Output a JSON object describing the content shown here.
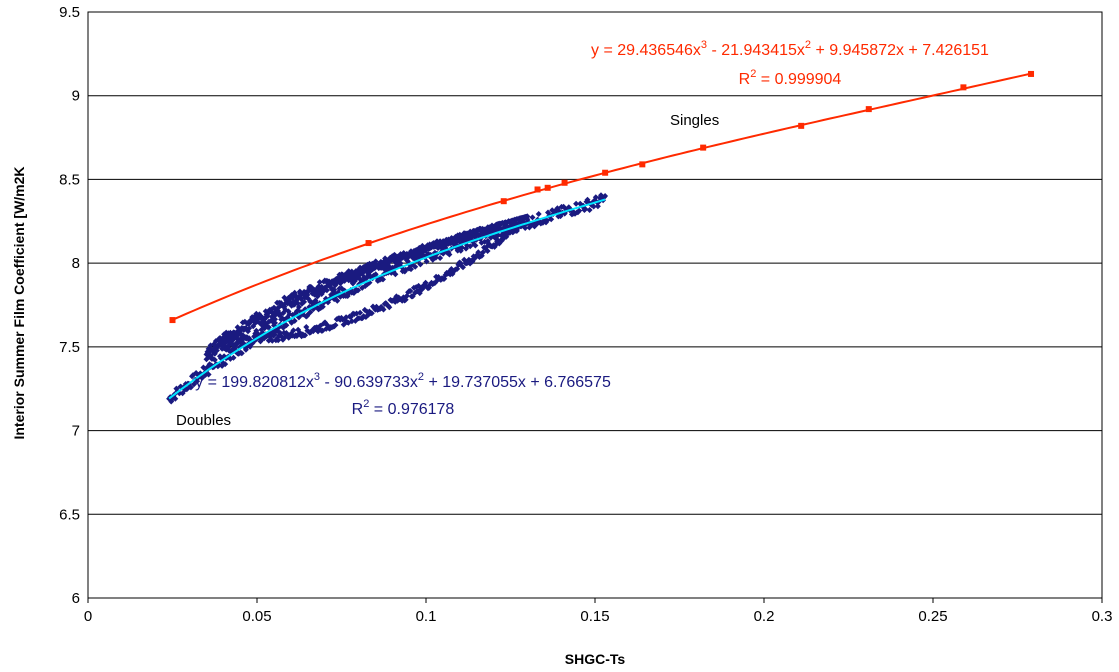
{
  "chart_data": {
    "type": "scatter",
    "title": "",
    "xlabel": "SHGC-Ts",
    "ylabel": "Interior Summer Film Coefficient [W/m2K",
    "xlim": [
      0,
      0.3
    ],
    "ylim": [
      6,
      9.5
    ],
    "x_ticks": [
      "0",
      "0.05",
      "0.1",
      "0.15",
      "0.2",
      "0.25",
      "0.3"
    ],
    "y_ticks": [
      "6",
      "6.5",
      "7",
      "7.5",
      "8",
      "8.5",
      "9",
      "9.5"
    ],
    "grid": "horizontal",
    "series": [
      {
        "name": "Singles",
        "color": "#ff2a00",
        "marker": "square",
        "x": [
          0.025,
          0.083,
          0.123,
          0.133,
          0.136,
          0.141,
          0.153,
          0.164,
          0.182,
          0.211,
          0.231,
          0.259,
          0.279
        ],
        "y": [
          7.66,
          8.12,
          8.37,
          8.44,
          8.45,
          8.48,
          8.54,
          8.59,
          8.69,
          8.82,
          8.92,
          9.05,
          9.13
        ],
        "trendline": {
          "type": "poly3",
          "coefficients": [
            29.436546,
            -21.943415,
            9.945872,
            7.426151
          ],
          "equation": "y = 29.436546x",
          "equation_rest": " - 21.943415x",
          "equation_tail": " + 9.945872x + 7.426151",
          "r2_label": "R",
          "r2_value": " = 0.999904",
          "color": "#ff2a00"
        }
      },
      {
        "name": "Doubles",
        "color": "#1a1a80",
        "marker": "diamond",
        "x_range": [
          0.024,
          0.153
        ],
        "trendline": {
          "type": "poly3",
          "coefficients": [
            199.820812,
            -90.639733,
            19.737055,
            6.766575
          ],
          "equation": "y = 199.820812x",
          "equation_rest": " - 90.639733x",
          "equation_tail": " + 19.737055x + 6.766575",
          "r2_label": "R",
          "r2_value": " = 0.976178",
          "color": "#00e5ff",
          "label_color": "#1a1a80"
        }
      }
    ],
    "superscripts": {
      "cube": "3",
      "square": "2"
    }
  }
}
